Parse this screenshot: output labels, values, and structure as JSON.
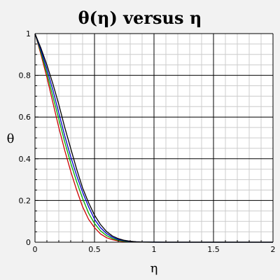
{
  "chart_data": {
    "type": "line",
    "title": "θ(η) versus η",
    "xlabel": "η",
    "ylabel": "θ",
    "xlim": [
      0,
      2
    ],
    "ylim": [
      0,
      1
    ],
    "x_ticks": [
      "0",
      "0.5",
      "1",
      "1.5",
      "2"
    ],
    "y_ticks": [
      "0",
      "0.2",
      "0.4",
      "0.6",
      "0.8",
      "1"
    ],
    "grid": true,
    "series": [
      {
        "color": "#cc0000",
        "x": [
          0,
          0.05,
          0.1,
          0.15,
          0.2,
          0.25,
          0.3,
          0.35,
          0.4,
          0.45,
          0.5,
          0.55,
          0.6,
          0.65,
          0.7,
          0.75,
          0.8,
          0.85,
          0.9,
          1.0,
          1.1,
          1.2,
          1.5,
          2.0
        ],
        "y": [
          1,
          0.9,
          0.79,
          0.67,
          0.55,
          0.44,
          0.34,
          0.25,
          0.17,
          0.11,
          0.07,
          0.04,
          0.022,
          0.012,
          0.006,
          0.003,
          0.0015,
          0.0008,
          0.0004,
          0.0001,
          0,
          0,
          0,
          0
        ]
      },
      {
        "color": "#00aa00",
        "x": [
          0,
          0.05,
          0.1,
          0.15,
          0.2,
          0.25,
          0.3,
          0.35,
          0.4,
          0.45,
          0.5,
          0.55,
          0.6,
          0.65,
          0.7,
          0.75,
          0.8,
          0.85,
          0.9,
          1.0,
          1.1,
          1.2,
          1.5,
          2.0
        ],
        "y": [
          1,
          0.91,
          0.81,
          0.7,
          0.59,
          0.48,
          0.38,
          0.29,
          0.21,
          0.14,
          0.09,
          0.055,
          0.032,
          0.018,
          0.009,
          0.005,
          0.0025,
          0.0012,
          0.0006,
          0.0002,
          0,
          0,
          0,
          0
        ]
      },
      {
        "color": "#0000cc",
        "x": [
          0,
          0.05,
          0.1,
          0.15,
          0.2,
          0.25,
          0.3,
          0.35,
          0.4,
          0.45,
          0.5,
          0.55,
          0.6,
          0.65,
          0.7,
          0.75,
          0.8,
          0.85,
          0.9,
          1.0,
          1.1,
          1.2,
          1.5,
          2.0
        ],
        "y": [
          1,
          0.92,
          0.83,
          0.73,
          0.62,
          0.51,
          0.41,
          0.32,
          0.24,
          0.17,
          0.11,
          0.07,
          0.042,
          0.024,
          0.013,
          0.007,
          0.0035,
          0.0018,
          0.0009,
          0.0002,
          0,
          0,
          0,
          0
        ]
      },
      {
        "color": "#000000",
        "x": [
          0,
          0.05,
          0.1,
          0.15,
          0.2,
          0.25,
          0.3,
          0.35,
          0.4,
          0.45,
          0.5,
          0.55,
          0.6,
          0.65,
          0.7,
          0.75,
          0.8,
          0.85,
          0.9,
          1.0,
          1.1,
          1.2,
          1.5,
          2.0
        ],
        "y": [
          1,
          0.93,
          0.85,
          0.76,
          0.66,
          0.55,
          0.45,
          0.35,
          0.26,
          0.19,
          0.13,
          0.085,
          0.052,
          0.03,
          0.017,
          0.009,
          0.0045,
          0.0022,
          0.001,
          0.0003,
          0,
          0,
          0,
          0
        ]
      }
    ]
  }
}
